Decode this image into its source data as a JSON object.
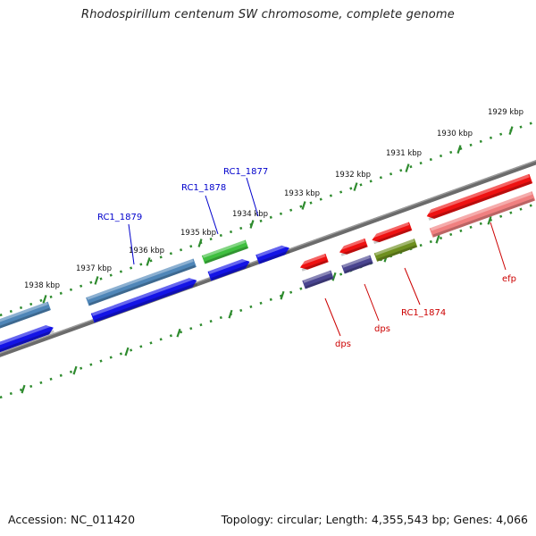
{
  "title": "Rhodospirillum centenum SW chromosome, complete genome",
  "footer": {
    "accession": "Accession: NC_011420",
    "info": "Topology: circular; Length: 4,355,543 bp; Genes: 4,066"
  },
  "colors": {
    "backbone": "#7a7a7a",
    "ticks": "#2e8b2e",
    "forward_gene": "#1414e6",
    "reverse_gene": "#ee1111",
    "cds_blue": "#4f86b8",
    "cds_green": "#3fbf3f",
    "cds_purple": "#4a4590",
    "cds_olive": "#6e8f1f",
    "cds_pink": "#f08080",
    "label_blue": "#0000cc",
    "label_red": "#cc0000"
  },
  "tick_labels": [
    "1929 kbp",
    "1930 kbp",
    "1931 kbp",
    "1932 kbp",
    "1933 kbp",
    "1934 kbp",
    "1935 kbp",
    "1936 kbp",
    "1937 kbp",
    "1938 kbp"
  ],
  "gene_labels": [
    {
      "text": "RC1_1877",
      "color": "blue"
    },
    {
      "text": "RC1_1878",
      "color": "blue"
    },
    {
      "text": "RC1_1879",
      "color": "blue"
    },
    {
      "text": "dps",
      "color": "red"
    },
    {
      "text": "dps",
      "color": "red"
    },
    {
      "text": "RC1_1874",
      "color": "red"
    },
    {
      "text": "efp",
      "color": "red"
    }
  ]
}
